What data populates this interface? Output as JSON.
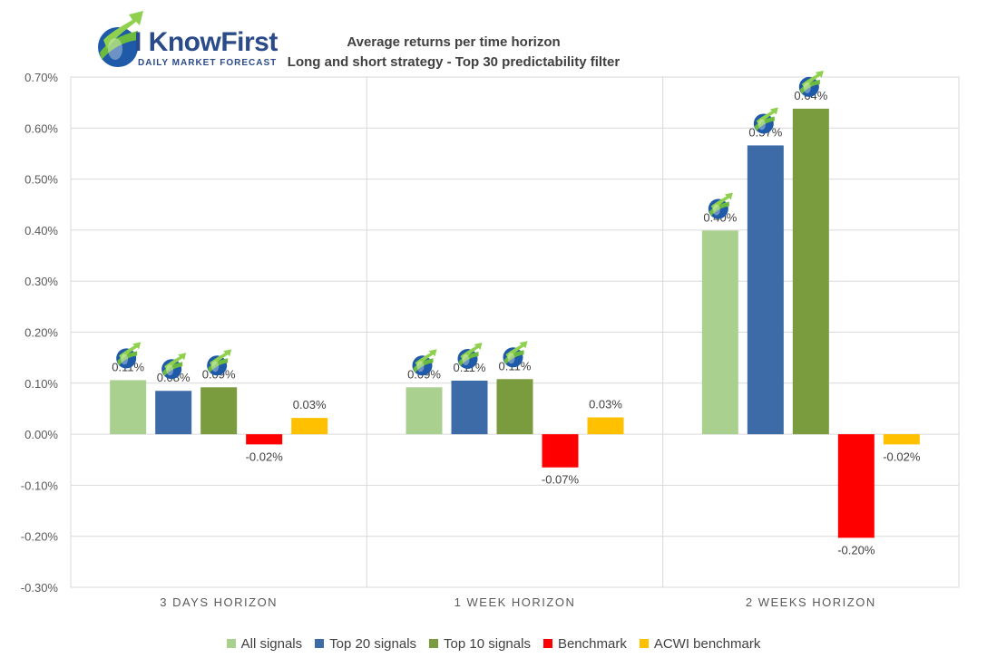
{
  "brand": {
    "name": "I KnowFirst",
    "tagline": "Daily Market Forecast",
    "logo_icon": "rising-arrow-globe-icon",
    "colors": {
      "blue": "#1f5aa8",
      "green": "#6dbb3e",
      "text": "#2a4a8a"
    }
  },
  "chart_data": {
    "type": "bar",
    "title": "Average returns per time horizon",
    "subtitle": "Long and short strategy - Top 30 predictability filter",
    "xlabel": "",
    "ylabel": "",
    "ylim": [
      -0.3,
      0.7
    ],
    "yticks": [
      -0.3,
      -0.2,
      -0.1,
      0.0,
      0.1,
      0.2,
      0.3,
      0.4,
      0.5,
      0.6,
      0.7
    ],
    "ytick_labels": [
      "-0.30%",
      "-0.20%",
      "-0.10%",
      "0.00%",
      "0.10%",
      "0.20%",
      "0.30%",
      "0.40%",
      "0.50%",
      "0.60%",
      "0.70%"
    ],
    "grid": true,
    "legend_position": "bottom",
    "categories": [
      "3 DAYS HORIZON",
      "1 WEEK HORIZON",
      "2 WEEKS HORIZON"
    ],
    "series": [
      {
        "name": "All signals",
        "color": "#a9d08e",
        "values": [
          0.106,
          0.092,
          0.399
        ],
        "labels": [
          "0.11%",
          "0.09%",
          "0.40%"
        ],
        "icon": true
      },
      {
        "name": "Top 20 signals",
        "color": "#3d6ba8",
        "values": [
          0.085,
          0.105,
          0.566
        ],
        "labels": [
          "0.08%",
          "0.11%",
          "0.57%"
        ],
        "icon": true
      },
      {
        "name": "Top 10 signals",
        "color": "#7a9c3f",
        "values": [
          0.092,
          0.108,
          0.638
        ],
        "labels": [
          "0.09%",
          "0.11%",
          "0.64%"
        ],
        "icon": true
      },
      {
        "name": "Benchmark",
        "color": "#ff0000",
        "values": [
          -0.02,
          -0.065,
          -0.203
        ],
        "labels": [
          "-0.02%",
          "-0.07%",
          "-0.20%"
        ],
        "icon": false
      },
      {
        "name": "ACWI benchmark",
        "color": "#ffc000",
        "values": [
          0.032,
          0.033,
          -0.02
        ],
        "labels": [
          "0.03%",
          "0.03%",
          "-0.02%"
        ],
        "icon": false
      }
    ]
  }
}
